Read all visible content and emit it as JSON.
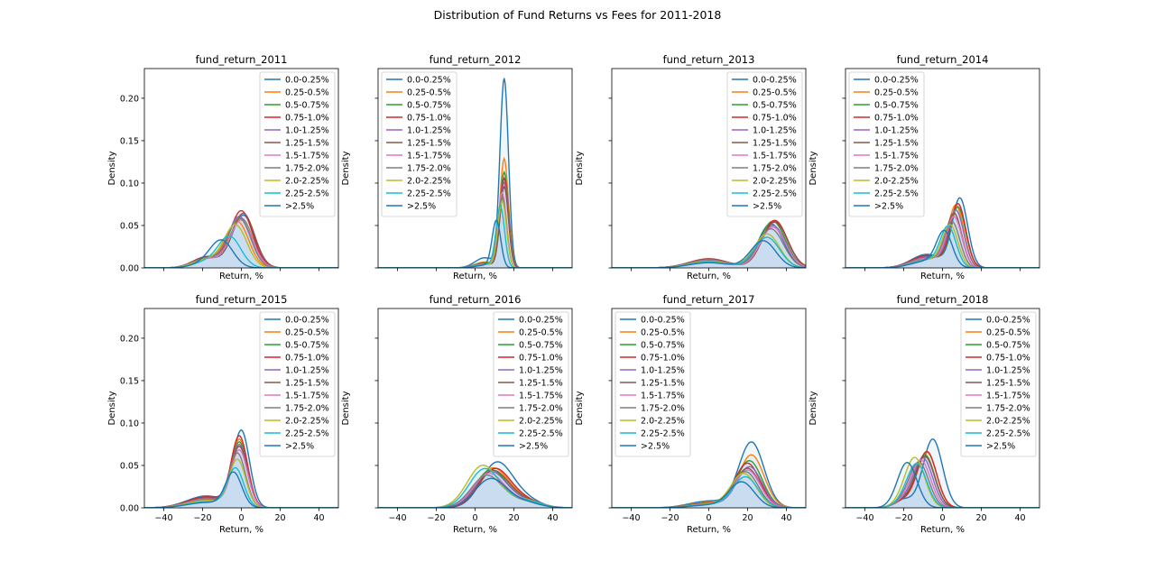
{
  "figure": {
    "title": "Distribution of Fund Returns vs Fees for 2011-2018"
  },
  "legend_entries": [
    {
      "label": "0.0-0.25%",
      "color": "#1f77b4"
    },
    {
      "label": "0.25-0.5%",
      "color": "#ff7f0e"
    },
    {
      "label": "0.5-0.75%",
      "color": "#2ca02c"
    },
    {
      "label": "0.75-1.0%",
      "color": "#d62728"
    },
    {
      "label": "1.0-1.25%",
      "color": "#9467bd"
    },
    {
      "label": "1.25-1.5%",
      "color": "#8c564b"
    },
    {
      "label": "1.5-1.75%",
      "color": "#e377c2"
    },
    {
      "label": "1.75-2.0%",
      "color": "#7f7f7f"
    },
    {
      "label": "2.0-2.25%",
      "color": "#bcbd22"
    },
    {
      "label": "2.25-2.5%",
      "color": "#17becf"
    },
    {
      "label": ">2.5%",
      "color": "#1f77b4"
    }
  ],
  "fill_color": "#c6dbef",
  "chart_data": [
    {
      "type": "area",
      "title": "fund_return_2011",
      "xlabel": "Return, %",
      "ylabel": "Density",
      "xlim": [
        -50,
        50
      ],
      "ylim": [
        0,
        0.235
      ],
      "legend_position": "upper right",
      "peaks": [
        [
          1,
          0.062
        ],
        [
          -2,
          0.054
        ],
        [
          0,
          0.058
        ],
        [
          0,
          0.067
        ],
        [
          -1,
          0.06
        ],
        [
          1,
          0.064
        ],
        [
          0,
          0.056
        ],
        [
          -1,
          0.058
        ],
        [
          -3,
          0.05
        ],
        [
          -6,
          0.036
        ],
        [
          -10,
          0.03
        ]
      ],
      "sd": 5.8,
      "extra": {
        "mu": -18,
        "h": 0.012,
        "s": 7
      }
    },
    {
      "type": "area",
      "title": "fund_return_2012",
      "xlabel": "Return, %",
      "ylabel": "Density",
      "xlim": [
        -50,
        50
      ],
      "ylim": [
        0,
        0.235
      ],
      "legend_position": "upper left",
      "peaks": [
        [
          15,
          0.222
        ],
        [
          15,
          0.128
        ],
        [
          15,
          0.112
        ],
        [
          15,
          0.105
        ],
        [
          15,
          0.1
        ],
        [
          15,
          0.095
        ],
        [
          14,
          0.088
        ],
        [
          14,
          0.083
        ],
        [
          14,
          0.078
        ],
        [
          13,
          0.072
        ],
        [
          11,
          0.055
        ]
      ],
      "sd": 2.2,
      "extra": {
        "mu": 5,
        "h": 0.012,
        "s": 5
      }
    },
    {
      "type": "area",
      "title": "fund_return_2013",
      "xlabel": "Return, %",
      "ylabel": "Density",
      "xlim": [
        -50,
        50
      ],
      "ylim": [
        0,
        0.235
      ],
      "legend_position": "upper right",
      "peaks": [
        [
          32,
          0.052
        ],
        [
          34,
          0.055
        ],
        [
          33,
          0.055
        ],
        [
          34,
          0.056
        ],
        [
          33,
          0.05
        ],
        [
          34,
          0.054
        ],
        [
          33,
          0.048
        ],
        [
          32,
          0.046
        ],
        [
          30,
          0.04
        ],
        [
          30,
          0.036
        ],
        [
          28,
          0.032
        ]
      ],
      "sd": 6.5,
      "extra": {
        "mu": 0,
        "h": 0.01,
        "s": 10
      }
    },
    {
      "type": "area",
      "title": "fund_return_2014",
      "xlabel": "Return, %",
      "ylabel": "Density",
      "xlim": [
        -50,
        50
      ],
      "ylim": [
        0,
        0.235
      ],
      "legend_position": "upper left",
      "peaks": [
        [
          9,
          0.081
        ],
        [
          7,
          0.072
        ],
        [
          8,
          0.07
        ],
        [
          8,
          0.074
        ],
        [
          7,
          0.066
        ],
        [
          6,
          0.062
        ],
        [
          6,
          0.058
        ],
        [
          5,
          0.052
        ],
        [
          4,
          0.048
        ],
        [
          3,
          0.046
        ],
        [
          1,
          0.04
        ]
      ],
      "sd": 4.0,
      "extra": {
        "mu": -8,
        "h": 0.016,
        "s": 8
      }
    },
    {
      "type": "area",
      "title": "fund_return_2015",
      "xlabel": "Return, %",
      "ylabel": "Density",
      "xlim": [
        -50,
        50
      ],
      "ylim": [
        0,
        0.235
      ],
      "legend_position": "upper right",
      "peaks": [
        [
          0,
          0.089
        ],
        [
          -1,
          0.078
        ],
        [
          -1,
          0.075
        ],
        [
          -1,
          0.082
        ],
        [
          -1,
          0.072
        ],
        [
          -1,
          0.07
        ],
        [
          -1,
          0.066
        ],
        [
          -2,
          0.062
        ],
        [
          -2,
          0.055
        ],
        [
          -3,
          0.045
        ],
        [
          -4,
          0.04
        ]
      ],
      "sd": 4.2,
      "extra": {
        "mu": -18,
        "h": 0.014,
        "s": 10
      }
    },
    {
      "type": "area",
      "title": "fund_return_2016",
      "xlabel": "Return, %",
      "ylabel": "Density",
      "xlim": [
        -50,
        50
      ],
      "ylim": [
        0,
        0.235
      ],
      "legend_position": "upper right",
      "peaks": [
        [
          11,
          0.052
        ],
        [
          9,
          0.046
        ],
        [
          8,
          0.044
        ],
        [
          10,
          0.045
        ],
        [
          8,
          0.042
        ],
        [
          9,
          0.043
        ],
        [
          7,
          0.04
        ],
        [
          6,
          0.038
        ],
        [
          4,
          0.05
        ],
        [
          5,
          0.046
        ],
        [
          8,
          0.034
        ]
      ],
      "sd": 8.0,
      "extra": {
        "mu": 25,
        "h": 0.01,
        "s": 8
      }
    },
    {
      "type": "area",
      "title": "fund_return_2017",
      "xlabel": "Return, %",
      "ylabel": "Density",
      "xlim": [
        -50,
        50
      ],
      "ylim": [
        0,
        0.235
      ],
      "legend_position": "upper left",
      "peaks": [
        [
          22,
          0.077
        ],
        [
          22,
          0.062
        ],
        [
          21,
          0.055
        ],
        [
          20,
          0.052
        ],
        [
          21,
          0.048
        ],
        [
          20,
          0.046
        ],
        [
          20,
          0.044
        ],
        [
          19,
          0.042
        ],
        [
          18,
          0.04
        ],
        [
          19,
          0.036
        ],
        [
          17,
          0.03
        ]
      ],
      "sd": 6.5,
      "extra": {
        "mu": 0,
        "h": 0.008,
        "s": 10
      }
    },
    {
      "type": "area",
      "title": "fund_return_2018",
      "xlabel": "Return, %",
      "ylabel": "Density",
      "xlim": [
        -50,
        50
      ],
      "ylim": [
        0,
        0.235
      ],
      "legend_position": "upper right",
      "peaks": [
        [
          -5,
          0.081
        ],
        [
          -8,
          0.065
        ],
        [
          -9,
          0.062
        ],
        [
          -8,
          0.066
        ],
        [
          -10,
          0.058
        ],
        [
          -9,
          0.06
        ],
        [
          -11,
          0.055
        ],
        [
          -12,
          0.052
        ],
        [
          -14,
          0.056
        ],
        [
          -13,
          0.05
        ],
        [
          -18,
          0.048
        ]
      ],
      "sd": 5.0,
      "extra": {
        "mu": -20,
        "h": 0.01,
        "s": 5
      }
    }
  ]
}
